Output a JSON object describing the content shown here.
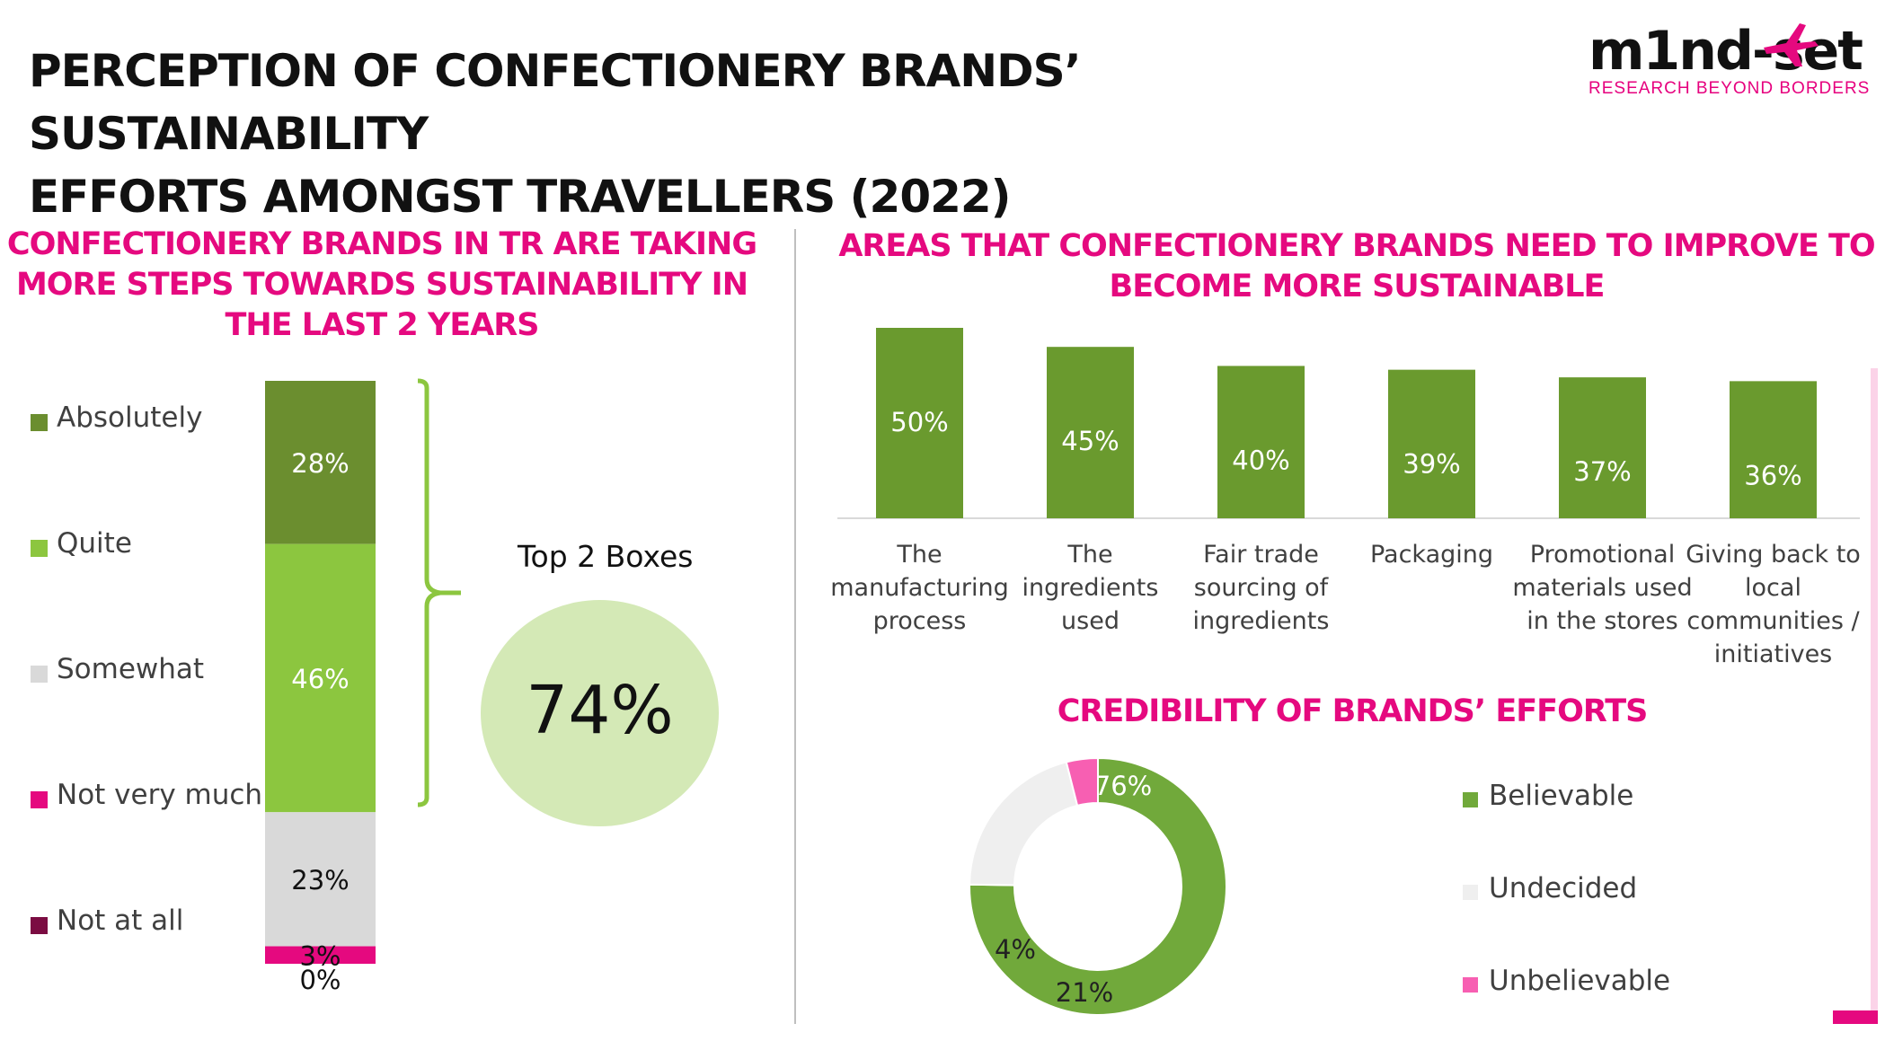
{
  "title_lines": [
    "PERCEPTION OF CONFECTIONERY BRANDS’ SUSTAINABILITY",
    "EFFORTS AMONGST TRAVELLERS (2022)"
  ],
  "logo": {
    "wordmark": "m1nd-set",
    "tagline": "RESEARCH BEYOND BORDERS"
  },
  "colors": {
    "accent": "#e5097f",
    "dark_green": "#6b8e2f",
    "light_green": "#8cc63f",
    "grey": "#d9d9d9",
    "pink": "#e5097f",
    "maroon": "#7b0c42",
    "bar_green": "#6a9a2e",
    "donut_green": "#71a93b",
    "donut_grey": "#efefef",
    "donut_pink": "#f75fb2",
    "top2_circle": "#d4e9b6"
  },
  "left_panel": {
    "title_lines": [
      "CONFECTIONERY BRANDS IN TR ARE TAKING",
      "MORE STEPS TOWARDS SUSTAINABILITY IN",
      "THE LAST 2 YEARS"
    ],
    "top2": {
      "label": "Top 2 Boxes",
      "value": "74%"
    }
  },
  "right_top_panel": {
    "title_lines": [
      "AREAS THAT CONFECTIONERY BRANDS NEED TO IMPROVE TO",
      "BECOME MORE SUSTAINABLE"
    ]
  },
  "right_bottom_panel": {
    "title_lines": [
      "CREDIBILITY OF BRANDS’ EFFORTS"
    ]
  },
  "chart_data": [
    {
      "type": "bar",
      "stacked": true,
      "series": [
        {
          "name": "Absolutely",
          "values": [
            28
          ],
          "label": "28%",
          "color": "#6b8e2f"
        },
        {
          "name": "Quite",
          "values": [
            46
          ],
          "label": "46%",
          "color": "#8cc63f"
        },
        {
          "name": "Somewhat",
          "values": [
            23
          ],
          "label": "23%",
          "color": "#d9d9d9"
        },
        {
          "name": "Not very much",
          "values": [
            3
          ],
          "label": "3%",
          "color": "#e5097f"
        },
        {
          "name": "Not at all",
          "values": [
            0
          ],
          "label": "0%",
          "color": "#7b0c42"
        }
      ],
      "legend_position": "left"
    },
    {
      "type": "bar",
      "categories": [
        [
          "The",
          "manufacturing",
          "process"
        ],
        [
          "The",
          "ingredients",
          "used"
        ],
        [
          "Fair trade",
          "sourcing of",
          "ingredients"
        ],
        [
          "Packaging"
        ],
        [
          "Promotional",
          "materials used",
          "in the stores"
        ],
        [
          "Giving back to",
          "local",
          "communities /",
          "initiatives"
        ]
      ],
      "values": [
        50,
        45,
        40,
        39,
        37,
        36
      ],
      "labels": [
        "50%",
        "45%",
        "40%",
        "39%",
        "37%",
        "36%"
      ],
      "grid": false
    },
    {
      "type": "pie",
      "donut": true,
      "slices": [
        {
          "name": "Believable",
          "value": 76,
          "label": "76%",
          "color": "#71a93b"
        },
        {
          "name": "Undecided",
          "value": 21,
          "label": "21%",
          "color": "#efefef"
        },
        {
          "name": "Unbelievable",
          "value": 4,
          "label": "4%",
          "color": "#f75fb2"
        }
      ],
      "legend_position": "right"
    }
  ]
}
